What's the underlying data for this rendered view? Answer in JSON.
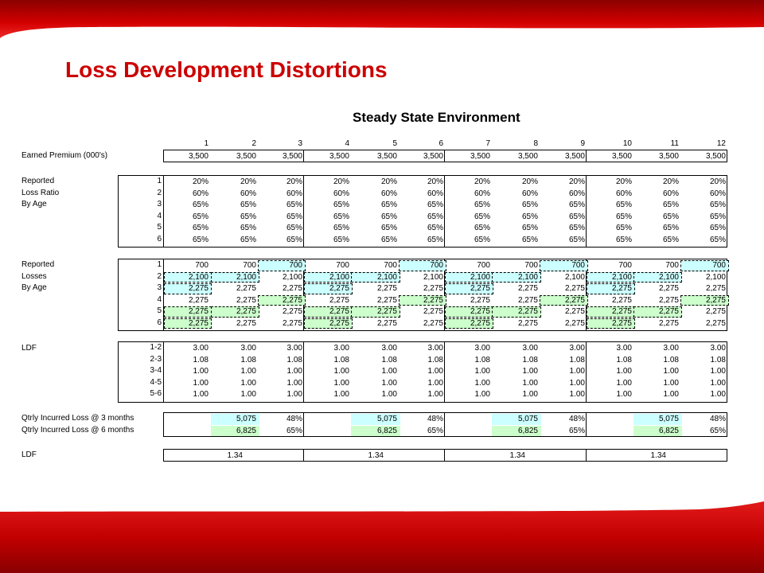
{
  "slide": {
    "title": "Loss Development Distortions",
    "sheet_title": "Steady State Environment"
  },
  "colors": {
    "brand_red": "#cc0000",
    "highlight_blue": "#ccffff",
    "highlight_green": "#ccffcc"
  },
  "columns": [
    "1",
    "2",
    "3",
    "4",
    "5",
    "6",
    "7",
    "8",
    "9",
    "10",
    "11",
    "12"
  ],
  "earned_premium": {
    "label": "Earned Premium (000's)",
    "values": [
      "3,500",
      "3,500",
      "3,500",
      "3,500",
      "3,500",
      "3,500",
      "3,500",
      "3,500",
      "3,500",
      "3,500",
      "3,500",
      "3,500"
    ]
  },
  "loss_ratio": {
    "labels": [
      "Reported",
      "Loss Ratio",
      "By Age"
    ],
    "ages": [
      "1",
      "2",
      "3",
      "4",
      "5",
      "6"
    ],
    "rows": [
      [
        "20%",
        "20%",
        "20%",
        "20%",
        "20%",
        "20%",
        "20%",
        "20%",
        "20%",
        "20%",
        "20%",
        "20%"
      ],
      [
        "60%",
        "60%",
        "60%",
        "60%",
        "60%",
        "60%",
        "60%",
        "60%",
        "60%",
        "60%",
        "60%",
        "60%"
      ],
      [
        "65%",
        "65%",
        "65%",
        "65%",
        "65%",
        "65%",
        "65%",
        "65%",
        "65%",
        "65%",
        "65%",
        "65%"
      ],
      [
        "65%",
        "65%",
        "65%",
        "65%",
        "65%",
        "65%",
        "65%",
        "65%",
        "65%",
        "65%",
        "65%",
        "65%"
      ],
      [
        "65%",
        "65%",
        "65%",
        "65%",
        "65%",
        "65%",
        "65%",
        "65%",
        "65%",
        "65%",
        "65%",
        "65%"
      ],
      [
        "65%",
        "65%",
        "65%",
        "65%",
        "65%",
        "65%",
        "65%",
        "65%",
        "65%",
        "65%",
        "65%",
        "65%"
      ]
    ]
  },
  "losses": {
    "labels": [
      "Reported",
      "Losses",
      "By Age"
    ],
    "ages": [
      "1",
      "2",
      "3",
      "4",
      "5",
      "6"
    ],
    "rows": [
      [
        "700",
        "700",
        "700",
        "700",
        "700",
        "700",
        "700",
        "700",
        "700",
        "700",
        "700",
        "700"
      ],
      [
        "2,100",
        "2,100",
        "2,100",
        "2,100",
        "2,100",
        "2,100",
        "2,100",
        "2,100",
        "2,100",
        "2,100",
        "2,100",
        "2,100"
      ],
      [
        "2,275",
        "2,275",
        "2,275",
        "2,275",
        "2,275",
        "2,275",
        "2,275",
        "2,275",
        "2,275",
        "2,275",
        "2,275",
        "2,275"
      ],
      [
        "2,275",
        "2,275",
        "2,275",
        "2,275",
        "2,275",
        "2,275",
        "2,275",
        "2,275",
        "2,275",
        "2,275",
        "2,275",
        "2,275"
      ],
      [
        "2,275",
        "2,275",
        "2,275",
        "2,275",
        "2,275",
        "2,275",
        "2,275",
        "2,275",
        "2,275",
        "2,275",
        "2,275",
        "2,275"
      ],
      [
        "2,275",
        "2,275",
        "2,275",
        "2,275",
        "2,275",
        "2,275",
        "2,275",
        "2,275",
        "2,275",
        "2,275",
        "2,275",
        "2,275"
      ]
    ],
    "blue_cells": [
      [
        0,
        2
      ],
      [
        1,
        0
      ],
      [
        1,
        1
      ],
      [
        2,
        0
      ],
      [
        0,
        5
      ],
      [
        1,
        3
      ],
      [
        1,
        4
      ],
      [
        2,
        3
      ],
      [
        0,
        8
      ],
      [
        1,
        6
      ],
      [
        1,
        7
      ],
      [
        2,
        6
      ],
      [
        0,
        11
      ],
      [
        1,
        9
      ],
      [
        1,
        10
      ],
      [
        2,
        9
      ]
    ],
    "green_cells": [
      [
        3,
        2
      ],
      [
        4,
        0
      ],
      [
        4,
        1
      ],
      [
        5,
        0
      ],
      [
        3,
        5
      ],
      [
        4,
        3
      ],
      [
        4,
        4
      ],
      [
        5,
        3
      ],
      [
        3,
        8
      ],
      [
        4,
        6
      ],
      [
        4,
        7
      ],
      [
        5,
        6
      ],
      [
        3,
        11
      ],
      [
        4,
        9
      ],
      [
        4,
        10
      ],
      [
        5,
        9
      ]
    ]
  },
  "ldf": {
    "label": "LDF",
    "ages": [
      "1-2",
      "2-3",
      "3-4",
      "4-5",
      "5-6"
    ],
    "rows": [
      [
        "3.00",
        "3.00",
        "3.00",
        "3.00",
        "3.00",
        "3.00",
        "3.00",
        "3.00",
        "3.00",
        "3.00",
        "3.00",
        "3.00"
      ],
      [
        "1.08",
        "1.08",
        "1.08",
        "1.08",
        "1.08",
        "1.08",
        "1.08",
        "1.08",
        "1.08",
        "1.08",
        "1.08",
        "1.08"
      ],
      [
        "1.00",
        "1.00",
        "1.00",
        "1.00",
        "1.00",
        "1.00",
        "1.00",
        "1.00",
        "1.00",
        "1.00",
        "1.00",
        "1.00"
      ],
      [
        "1.00",
        "1.00",
        "1.00",
        "1.00",
        "1.00",
        "1.00",
        "1.00",
        "1.00",
        "1.00",
        "1.00",
        "1.00",
        "1.00"
      ],
      [
        "1.00",
        "1.00",
        "1.00",
        "1.00",
        "1.00",
        "1.00",
        "1.00",
        "1.00",
        "1.00",
        "1.00",
        "1.00",
        "1.00"
      ]
    ]
  },
  "quarterly": {
    "labels": [
      "Qtrly Incurred Loss @ 3 months",
      "Qtrly Incurred Loss @ 6 months"
    ],
    "rows": [
      [
        "",
        "5,075",
        "48%",
        "",
        "5,075",
        "48%",
        "",
        "5,075",
        "48%",
        "",
        "5,075",
        "48%"
      ],
      [
        "",
        "6,825",
        "65%",
        "",
        "6,825",
        "65%",
        "",
        "6,825",
        "65%",
        "",
        "6,825",
        "65%"
      ]
    ]
  },
  "final_ldf": {
    "label": "LDF",
    "values": [
      "1.34",
      "1.34",
      "1.34",
      "1.34"
    ]
  }
}
